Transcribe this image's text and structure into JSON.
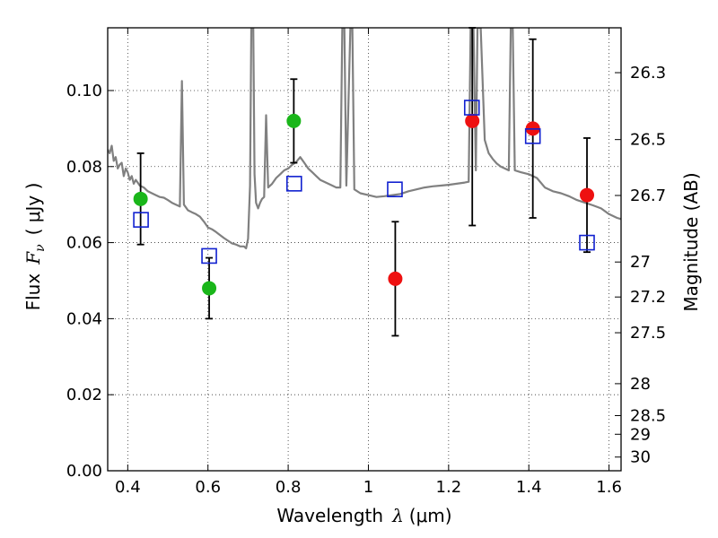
{
  "chart_data": {
    "type": "scatter",
    "xlabel": "Wavelength",
    "xlabel_symbol": "λ",
    "xlabel_unit": "(μm)",
    "ylabel": "Flux",
    "ylabel_symbol": "F",
    "ylabel_subscript": "ν",
    "ylabel_unit": "( μJy )",
    "y2label": "Magnitude (AB)",
    "xlim": [
      0.35,
      1.63
    ],
    "ylim": [
      0.0,
      0.1165
    ],
    "grid": true,
    "x_ticks": [
      0.4,
      0.6,
      0.8,
      1.0,
      1.2,
      1.4,
      1.6
    ],
    "x_tick_labels": [
      "0.4",
      "0.6",
      "0.8",
      "1",
      "1.2",
      "1.4",
      "1.6"
    ],
    "y_ticks": [
      0.0,
      0.02,
      0.04,
      0.06,
      0.08,
      0.1
    ],
    "y_tick_labels": [
      "0.00",
      "0.02",
      "0.04",
      "0.06",
      "0.08",
      "0.10"
    ],
    "y2_ticks": [
      {
        "label": "26.3",
        "flux": 0.1047
      },
      {
        "label": "26.5",
        "flux": 0.0871
      },
      {
        "label": "26.7",
        "flux": 0.0724
      },
      {
        "label": "27",
        "flux": 0.0549
      },
      {
        "label": "27.2",
        "flux": 0.0457
      },
      {
        "label": "27.5",
        "flux": 0.0363
      },
      {
        "label": "28",
        "flux": 0.0229
      },
      {
        "label": "28.5",
        "flux": 0.0145
      },
      {
        "label": "29",
        "flux": 0.0096
      },
      {
        "label": "30",
        "flux": 0.0036
      }
    ],
    "series": [
      {
        "kind": "line",
        "color": "#808080",
        "points": [
          [
            0.35,
            0.0845
          ],
          [
            0.355,
            0.0835
          ],
          [
            0.36,
            0.0855
          ],
          [
            0.365,
            0.0815
          ],
          [
            0.37,
            0.0825
          ],
          [
            0.375,
            0.0795
          ],
          [
            0.38,
            0.0805
          ],
          [
            0.385,
            0.081
          ],
          [
            0.39,
            0.0775
          ],
          [
            0.395,
            0.0795
          ],
          [
            0.4,
            0.0785
          ],
          [
            0.405,
            0.0765
          ],
          [
            0.41,
            0.0775
          ],
          [
            0.415,
            0.0755
          ],
          [
            0.42,
            0.0765
          ],
          [
            0.43,
            0.075
          ],
          [
            0.44,
            0.0745
          ],
          [
            0.45,
            0.0735
          ],
          [
            0.46,
            0.073
          ],
          [
            0.47,
            0.0725
          ],
          [
            0.48,
            0.072
          ],
          [
            0.49,
            0.0718
          ],
          [
            0.5,
            0.0712
          ],
          [
            0.51,
            0.0705
          ],
          [
            0.52,
            0.07
          ],
          [
            0.53,
            0.0695
          ],
          [
            0.535,
            0.1025
          ],
          [
            0.54,
            0.07
          ],
          [
            0.55,
            0.0685
          ],
          [
            0.56,
            0.068
          ],
          [
            0.57,
            0.0675
          ],
          [
            0.58,
            0.0668
          ],
          [
            0.59,
            0.0655
          ],
          [
            0.6,
            0.064
          ],
          [
            0.61,
            0.0635
          ],
          [
            0.62,
            0.0628
          ],
          [
            0.63,
            0.062
          ],
          [
            0.64,
            0.0612
          ],
          [
            0.65,
            0.0605
          ],
          [
            0.66,
            0.0598
          ],
          [
            0.67,
            0.0595
          ],
          [
            0.68,
            0.059
          ],
          [
            0.69,
            0.059
          ],
          [
            0.695,
            0.0585
          ],
          [
            0.7,
            0.061
          ],
          [
            0.705,
            0.075
          ],
          [
            0.708,
            0.1165
          ],
          [
            0.713,
            0.1165
          ],
          [
            0.716,
            0.078
          ],
          [
            0.72,
            0.0705
          ],
          [
            0.725,
            0.069
          ],
          [
            0.73,
            0.0705
          ],
          [
            0.735,
            0.0715
          ],
          [
            0.74,
            0.072
          ],
          [
            0.745,
            0.0935
          ],
          [
            0.75,
            0.0745
          ],
          [
            0.76,
            0.0755
          ],
          [
            0.77,
            0.077
          ],
          [
            0.78,
            0.078
          ],
          [
            0.79,
            0.079
          ],
          [
            0.8,
            0.0795
          ],
          [
            0.81,
            0.0805
          ],
          [
            0.82,
            0.0812
          ],
          [
            0.83,
            0.0825
          ],
          [
            0.84,
            0.081
          ],
          [
            0.85,
            0.0795
          ],
          [
            0.86,
            0.0785
          ],
          [
            0.87,
            0.0775
          ],
          [
            0.88,
            0.0765
          ],
          [
            0.89,
            0.076
          ],
          [
            0.9,
            0.0755
          ],
          [
            0.91,
            0.075
          ],
          [
            0.92,
            0.0745
          ],
          [
            0.93,
            0.0745
          ],
          [
            0.935,
            0.1165
          ],
          [
            0.94,
            0.1165
          ],
          [
            0.945,
            0.075
          ],
          [
            0.955,
            0.1165
          ],
          [
            0.96,
            0.1165
          ],
          [
            0.965,
            0.074
          ],
          [
            0.98,
            0.073
          ],
          [
            1.0,
            0.0725
          ],
          [
            1.02,
            0.072
          ],
          [
            1.04,
            0.0722
          ],
          [
            1.06,
            0.0725
          ],
          [
            1.08,
            0.0728
          ],
          [
            1.1,
            0.0735
          ],
          [
            1.12,
            0.074
          ],
          [
            1.14,
            0.0745
          ],
          [
            1.16,
            0.0748
          ],
          [
            1.18,
            0.075
          ],
          [
            1.2,
            0.0752
          ],
          [
            1.22,
            0.0755
          ],
          [
            1.24,
            0.0758
          ],
          [
            1.25,
            0.076
          ],
          [
            1.255,
            0.1165
          ],
          [
            1.262,
            0.1165
          ],
          [
            1.268,
            0.079
          ],
          [
            1.272,
            0.1165
          ],
          [
            1.28,
            0.1165
          ],
          [
            1.29,
            0.087
          ],
          [
            1.3,
            0.0835
          ],
          [
            1.31,
            0.082
          ],
          [
            1.32,
            0.0808
          ],
          [
            1.33,
            0.08
          ],
          [
            1.34,
            0.0795
          ],
          [
            1.35,
            0.079
          ],
          [
            1.355,
            0.1165
          ],
          [
            1.36,
            0.1165
          ],
          [
            1.365,
            0.079
          ],
          [
            1.38,
            0.0785
          ],
          [
            1.4,
            0.078
          ],
          [
            1.42,
            0.077
          ],
          [
            1.44,
            0.0745
          ],
          [
            1.46,
            0.0735
          ],
          [
            1.48,
            0.073
          ],
          [
            1.5,
            0.0722
          ],
          [
            1.52,
            0.0712
          ],
          [
            1.54,
            0.0705
          ],
          [
            1.56,
            0.0698
          ],
          [
            1.58,
            0.069
          ],
          [
            1.6,
            0.0675
          ],
          [
            1.62,
            0.0665
          ],
          [
            1.63,
            0.0662
          ]
        ]
      },
      {
        "kind": "points",
        "marker": "circle",
        "color": "#1ab61a",
        "points": [
          {
            "x": 0.432,
            "y": 0.0715,
            "err_low": 0.0595,
            "err_high": 0.0835
          },
          {
            "x": 0.603,
            "y": 0.048,
            "err_low": 0.04,
            "err_high": 0.056
          },
          {
            "x": 0.814,
            "y": 0.092,
            "err_low": 0.081,
            "err_high": 0.103
          }
        ]
      },
      {
        "kind": "points",
        "marker": "circle",
        "color": "#ee1111",
        "points": [
          {
            "x": 1.067,
            "y": 0.0505,
            "err_low": 0.0355,
            "err_high": 0.0655
          },
          {
            "x": 1.259,
            "y": 0.092,
            "err_low": 0.0645,
            "err_high": 0.1165
          },
          {
            "x": 1.41,
            "y": 0.09,
            "err_low": 0.0665,
            "err_high": 0.1135
          },
          {
            "x": 1.545,
            "y": 0.0725,
            "err_low": 0.0575,
            "err_high": 0.0875
          }
        ]
      },
      {
        "kind": "points",
        "marker": "open-square",
        "color": "#1020d0",
        "points": [
          {
            "x": 0.433,
            "y": 0.066
          },
          {
            "x": 0.603,
            "y": 0.0565
          },
          {
            "x": 0.815,
            "y": 0.0755
          },
          {
            "x": 1.066,
            "y": 0.074
          },
          {
            "x": 1.258,
            "y": 0.0955
          },
          {
            "x": 1.41,
            "y": 0.088
          },
          {
            "x": 1.545,
            "y": 0.06
          }
        ]
      }
    ]
  }
}
